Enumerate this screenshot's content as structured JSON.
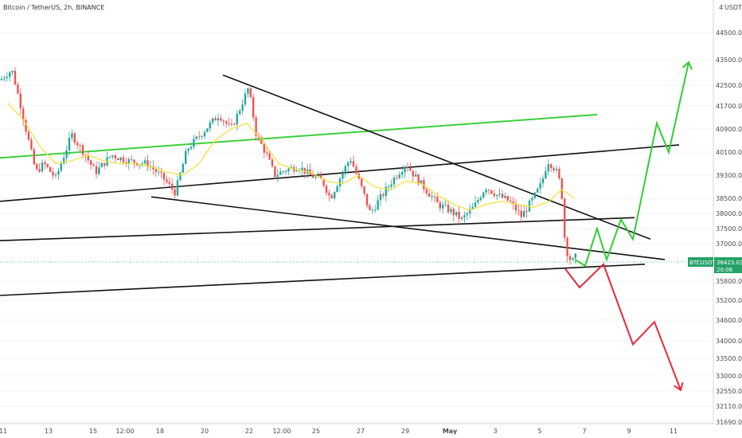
{
  "header": {
    "title": "Bitcoin / TetherUS, 2h, BINANCE"
  },
  "price_axis": {
    "currency": "USDT",
    "currency_prefix": "4"
  },
  "price_tag": {
    "symbol": "BTCUSDT",
    "price": "36423.03",
    "timer": "20:06"
  },
  "colors": {
    "up": "#26a69a",
    "down": "#ef5350",
    "ma": "#f2e342",
    "green_channel": "#3ad13a",
    "trend": "#111111",
    "bull_projection": "#33cc33",
    "bear_projection": "#e8283c",
    "tag_bg": "#26a269"
  },
  "chart_data": {
    "type": "candlestick",
    "symbol": "BTCUSDT",
    "interval": "2h",
    "exchange": "BINANCE",
    "y_ticks": [
      44500,
      43500,
      42500,
      41700,
      40900,
      40100,
      39300,
      38500,
      38000,
      37500,
      37000,
      36423.03,
      35800,
      35200,
      34600,
      34000,
      33500,
      33000,
      32550,
      32110,
      31690
    ],
    "x_ticks": [
      "11",
      "13",
      "15",
      "12:00",
      "18",
      "20",
      "22",
      "12:00",
      "25",
      "27",
      "29",
      "May",
      "3",
      "5",
      "7",
      "9",
      "11"
    ],
    "current_price": 36423.03,
    "approx_price_path": [
      [
        0,
        42700
      ],
      [
        15,
        43100
      ],
      [
        30,
        41200
      ],
      [
        45,
        39400
      ],
      [
        55,
        39700
      ],
      [
        70,
        39200
      ],
      [
        90,
        40700
      ],
      [
        105,
        40100
      ],
      [
        120,
        39400
      ],
      [
        140,
        40000
      ],
      [
        160,
        39800
      ],
      [
        185,
        39700
      ],
      [
        205,
        39200
      ],
      [
        220,
        38700
      ],
      [
        235,
        40200
      ],
      [
        255,
        40800
      ],
      [
        275,
        41400
      ],
      [
        290,
        40900
      ],
      [
        300,
        41500
      ],
      [
        312,
        42400
      ],
      [
        322,
        40700
      ],
      [
        335,
        40000
      ],
      [
        345,
        39300
      ],
      [
        360,
        39500
      ],
      [
        375,
        39600
      ],
      [
        390,
        39300
      ],
      [
        405,
        39100
      ],
      [
        415,
        38500
      ],
      [
        425,
        39100
      ],
      [
        440,
        39900
      ],
      [
        455,
        38800
      ],
      [
        465,
        38000
      ],
      [
        480,
        38600
      ],
      [
        495,
        39200
      ],
      [
        510,
        39700
      ],
      [
        520,
        39300
      ],
      [
        535,
        38800
      ],
      [
        550,
        38300
      ],
      [
        565,
        38100
      ],
      [
        580,
        37800
      ],
      [
        595,
        38200
      ],
      [
        610,
        38900
      ],
      [
        625,
        38600
      ],
      [
        640,
        38400
      ],
      [
        655,
        37900
      ],
      [
        670,
        38500
      ],
      [
        680,
        39000
      ],
      [
        688,
        39800
      ],
      [
        698,
        39500
      ],
      [
        705,
        38900
      ],
      [
        710,
        36900
      ],
      [
        718,
        36400
      ],
      [
        724,
        36600
      ]
    ],
    "moving_average": [
      [
        10,
        41800
      ],
      [
        30,
        41200
      ],
      [
        50,
        40300
      ],
      [
        70,
        39700
      ],
      [
        90,
        39800
      ],
      [
        110,
        40000
      ],
      [
        130,
        39800
      ],
      [
        150,
        39700
      ],
      [
        170,
        39700
      ],
      [
        190,
        39600
      ],
      [
        210,
        39400
      ],
      [
        230,
        39300
      ],
      [
        250,
        39700
      ],
      [
        270,
        40500
      ],
      [
        290,
        40900
      ],
      [
        310,
        41100
      ],
      [
        330,
        40500
      ],
      [
        350,
        39700
      ],
      [
        370,
        39500
      ],
      [
        390,
        39400
      ],
      [
        410,
        39100
      ],
      [
        430,
        39000
      ],
      [
        450,
        39300
      ],
      [
        470,
        38900
      ],
      [
        490,
        38800
      ],
      [
        510,
        39100
      ],
      [
        530,
        39000
      ],
      [
        550,
        38600
      ],
      [
        570,
        38300
      ],
      [
        590,
        38100
      ],
      [
        610,
        38300
      ],
      [
        630,
        38400
      ],
      [
        650,
        38300
      ],
      [
        670,
        38200
      ],
      [
        690,
        38400
      ],
      [
        705,
        38800
      ],
      [
        722,
        38500
      ]
    ],
    "trend_lines": [
      {
        "name": "green channel",
        "from": [
          0,
          39900
        ],
        "to": [
          750,
          41400
        ]
      },
      {
        "name": "upper descending",
        "from": [
          280,
          42900
        ],
        "to": [
          817,
          37150
        ]
      },
      {
        "name": "upper ascending",
        "from": [
          0,
          38400
        ],
        "to": [
          853,
          40350
        ]
      },
      {
        "name": "lower descending",
        "from": [
          190,
          38550
        ],
        "to": [
          835,
          36500
        ]
      },
      {
        "name": "mid ascending",
        "from": [
          0,
          37100
        ],
        "to": [
          797,
          37860
        ]
      },
      {
        "name": "lower ascending",
        "from": [
          0,
          35350
        ],
        "to": [
          810,
          36350
        ]
      }
    ],
    "projections": {
      "bullish": [
        [
          722,
          36500
        ],
        [
          735,
          36300
        ],
        [
          750,
          37500
        ],
        [
          762,
          36500
        ],
        [
          780,
          37800
        ],
        [
          795,
          37150
        ],
        [
          825,
          41100
        ],
        [
          840,
          40100
        ],
        [
          865,
          43400
        ]
      ],
      "bearish": [
        [
          710,
          36200
        ],
        [
          728,
          35600
        ],
        [
          758,
          36350
        ],
        [
          795,
          33900
        ],
        [
          822,
          34550
        ],
        [
          855,
          32580
        ]
      ]
    }
  }
}
